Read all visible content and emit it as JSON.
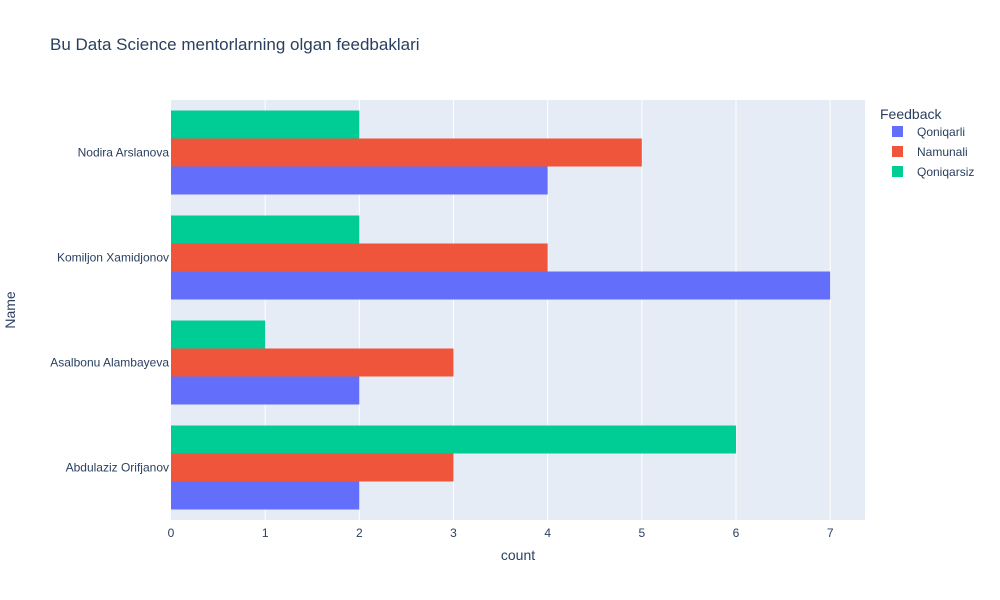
{
  "chart_data": {
    "type": "bar",
    "orientation": "horizontal",
    "barmode": "group",
    "title": "Bu Data Science mentorlarning olgan feedbaklari",
    "xlabel": "count",
    "ylabel": "Name",
    "xlim": [
      0,
      7.37
    ],
    "xticks": [
      0,
      1,
      2,
      3,
      4,
      5,
      6,
      7
    ],
    "categories": [
      "Abdulaziz Orifjanov",
      "Asalbonu Alambayeva",
      "Komiljon Xamidjonov",
      "Nodira Arslanova"
    ],
    "legend_title": "Feedback",
    "legend_position": "top-right",
    "grid": true,
    "series": [
      {
        "name": "Qoniqarli",
        "color": "#636efa",
        "values": [
          2,
          2,
          7,
          4
        ]
      },
      {
        "name": "Namunali",
        "color": "#ef553b",
        "values": [
          3,
          3,
          4,
          5
        ]
      },
      {
        "name": "Qoniqarsiz",
        "color": "#00cc96",
        "values": [
          6,
          1,
          2,
          2
        ]
      }
    ]
  }
}
